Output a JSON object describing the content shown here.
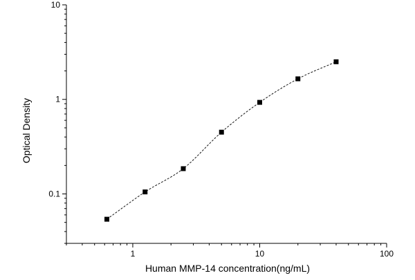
{
  "chart_data": {
    "type": "scatter",
    "title": "",
    "xlabel": "Human MMP-14 concentration(ng/mL)",
    "ylabel": "Optical Density",
    "xscale": "log",
    "yscale": "log",
    "xlim": [
      0.3,
      100
    ],
    "ylim": [
      0.03,
      10
    ],
    "x_tick_labels": [
      "1",
      "10",
      "100"
    ],
    "y_tick_labels": [
      "0.1",
      "1",
      "10"
    ],
    "grid": false,
    "legend": "none",
    "series": [
      {
        "marker": "square",
        "x": [
          0.625,
          1.25,
          2.5,
          5,
          10,
          20,
          40
        ],
        "y": [
          0.054,
          0.105,
          0.185,
          0.45,
          0.93,
          1.65,
          2.5
        ]
      }
    ],
    "fit_curve": {
      "style": "dashed",
      "x_from": 0.625,
      "x_to": 40
    },
    "colors": {
      "axis": "#000000",
      "marker": "#000000",
      "curve": "#000000"
    }
  }
}
